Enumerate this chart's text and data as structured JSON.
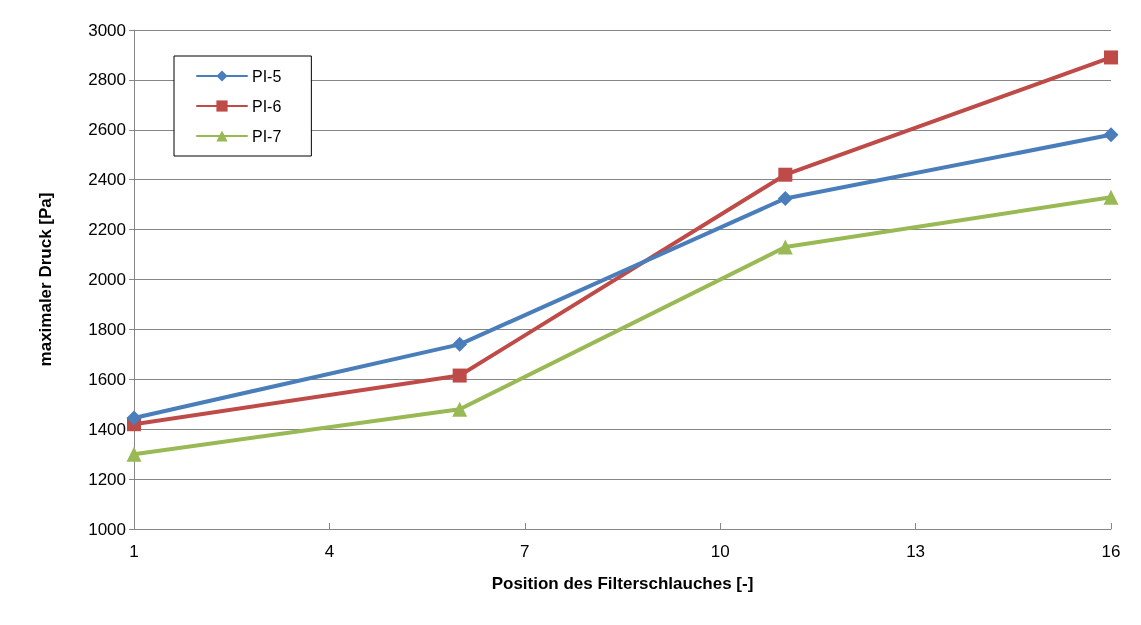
{
  "chart_data": {
    "type": "line",
    "xlabel": "Position des Filterschlauches [-]",
    "ylabel": "maximaler Druck [Pa]",
    "x": [
      1,
      6,
      11,
      16
    ],
    "series": [
      {
        "name": "PI-5",
        "color": "#4a7ebb",
        "marker": "diamond",
        "values": [
          1445,
          1740,
          2325,
          2580
        ]
      },
      {
        "name": "PI-6",
        "color": "#be4b48",
        "marker": "square",
        "values": [
          1420,
          1615,
          2420,
          2890
        ]
      },
      {
        "name": "PI-7",
        "color": "#98b954",
        "marker": "triangle",
        "values": [
          1300,
          1480,
          2130,
          2330
        ]
      }
    ],
    "xlim": [
      1,
      16
    ],
    "xticks": [
      1,
      4,
      7,
      10,
      13,
      16
    ],
    "ylim": [
      1000,
      3000
    ],
    "yticks": [
      1000,
      1200,
      1400,
      1600,
      1800,
      2000,
      2200,
      2400,
      2600,
      2800,
      3000
    ],
    "grid": "y",
    "legend": "top left",
    "line_style": "solid"
  }
}
